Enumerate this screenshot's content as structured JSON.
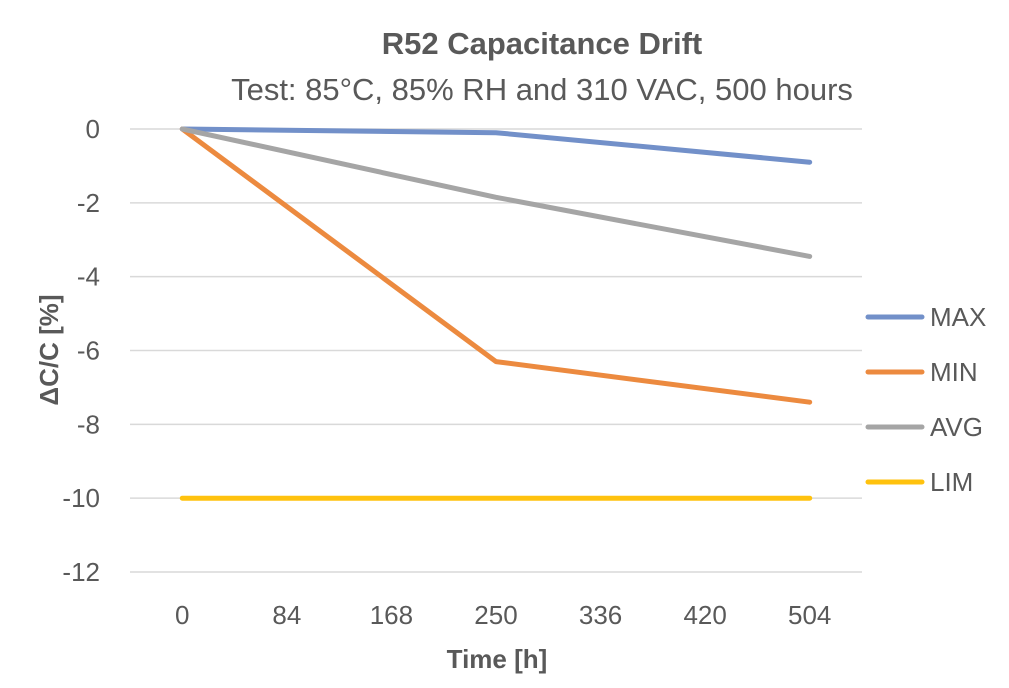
{
  "chart_data": {
    "type": "line",
    "title": "R52 Capacitance Drift",
    "subtitle": "Test: 85°C, 85% RH and 310 VAC, 500 hours",
    "xlabel": "Time [h]",
    "ylabel": "ΔC/C [%]",
    "categories": [
      "0",
      "84",
      "168",
      "250",
      "336",
      "420",
      "504"
    ],
    "ylim": [
      -12,
      0
    ],
    "yticks": [
      "0",
      "-2",
      "-4",
      "-6",
      "-8",
      "-10",
      "-12"
    ],
    "grid": true,
    "legend_position": "right",
    "series": [
      {
        "name": "MAX",
        "color": "#7290c9",
        "x": [
          0,
          250,
          504
        ],
        "values": [
          0,
          -0.1,
          -0.9
        ]
      },
      {
        "name": "MIN",
        "color": "#ec8a3f",
        "x": [
          0,
          250,
          504
        ],
        "values": [
          0,
          -6.3,
          -7.4
        ]
      },
      {
        "name": "AVG",
        "color": "#a5a5a5",
        "x": [
          0,
          250,
          504
        ],
        "values": [
          0,
          -1.85,
          -3.45
        ]
      },
      {
        "name": "LIM",
        "color": "#ffc20e",
        "x": [
          0,
          250,
          504
        ],
        "values": [
          -10,
          -10,
          -10
        ]
      }
    ]
  }
}
